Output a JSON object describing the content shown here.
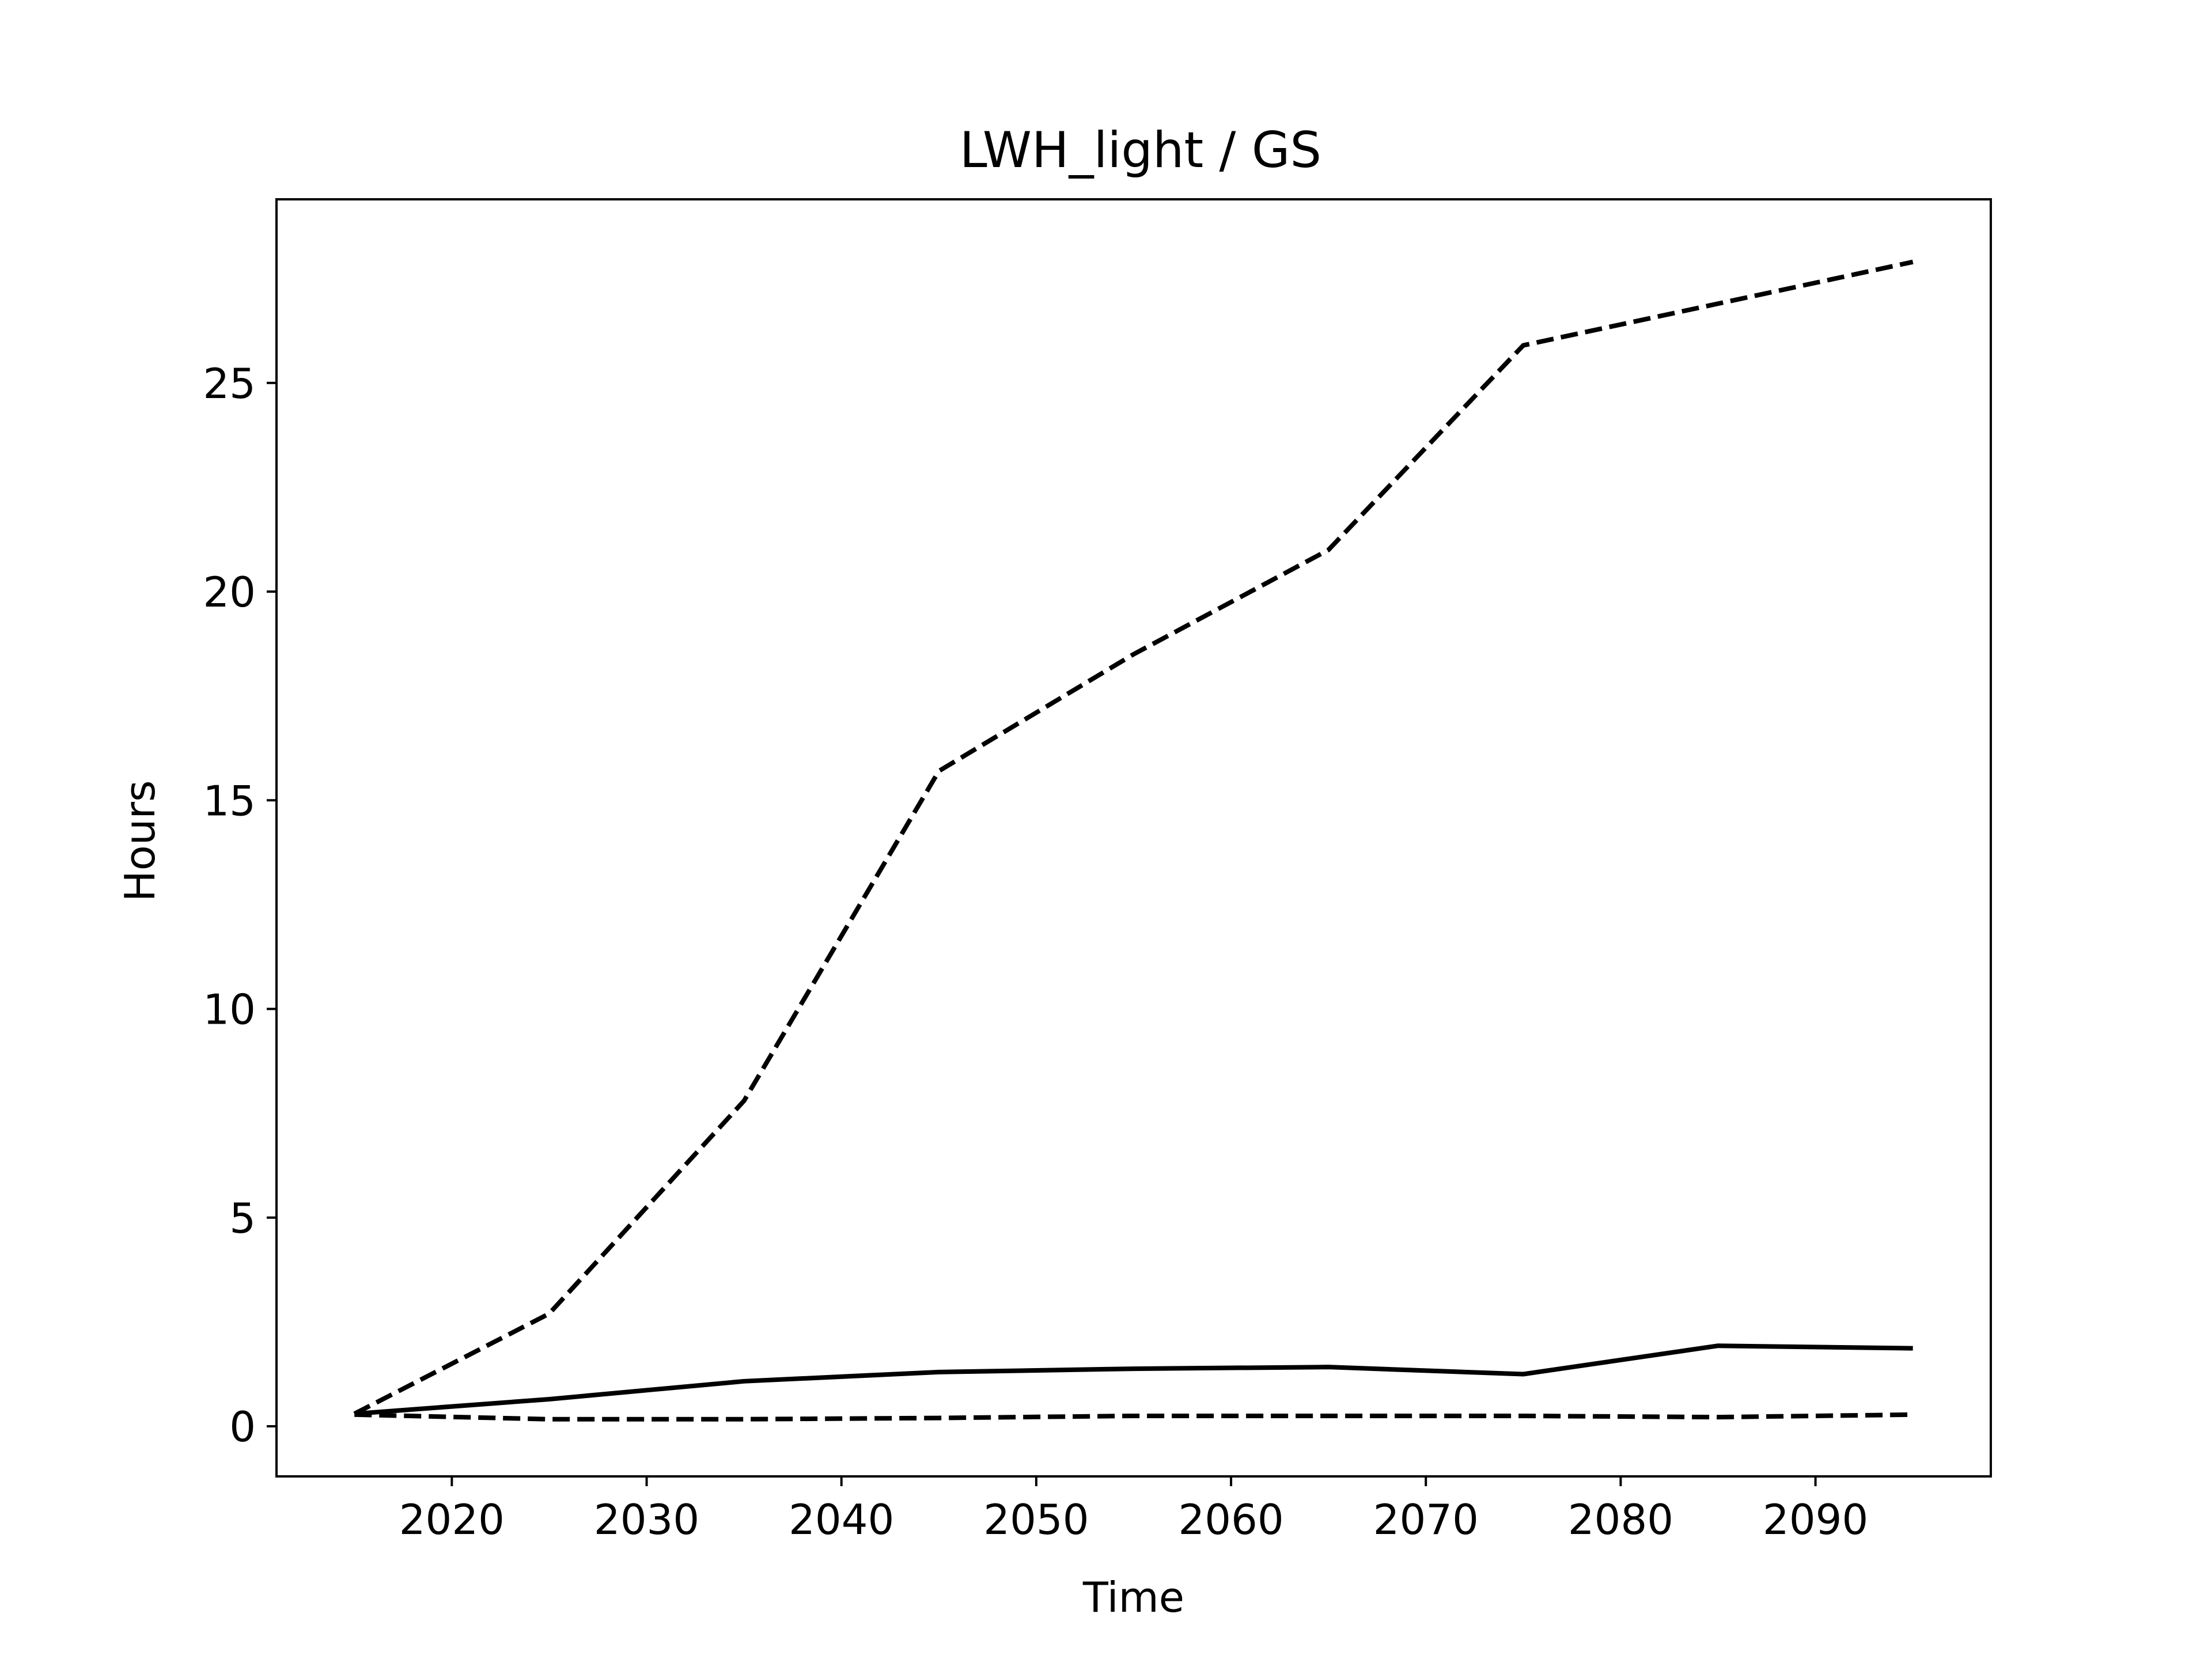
{
  "chart_data": {
    "type": "line",
    "title": "LWH_light / GS",
    "xlabel": "Time",
    "ylabel": "Hours",
    "xlim": [
      2011,
      2099
    ],
    "ylim": [
      -1.2,
      29.4
    ],
    "xticks": [
      2020,
      2030,
      2040,
      2050,
      2060,
      2070,
      2080,
      2090
    ],
    "yticks": [
      0,
      5,
      10,
      15,
      20,
      25
    ],
    "grid": false,
    "x": [
      2015,
      2025,
      2035,
      2045,
      2055,
      2065,
      2075,
      2085,
      2095
    ],
    "series": [
      {
        "style": "dashed",
        "values": [
          0.3,
          2.7,
          7.8,
          15.7,
          18.5,
          21.0,
          25.9,
          26.9,
          27.9
        ]
      },
      {
        "style": "solid",
        "values": [
          0.3,
          0.65,
          1.08,
          1.3,
          1.38,
          1.42,
          1.25,
          1.93,
          1.87
        ]
      },
      {
        "style": "dashed",
        "values": [
          0.28,
          0.17,
          0.17,
          0.2,
          0.25,
          0.25,
          0.25,
          0.22,
          0.28
        ]
      }
    ]
  }
}
